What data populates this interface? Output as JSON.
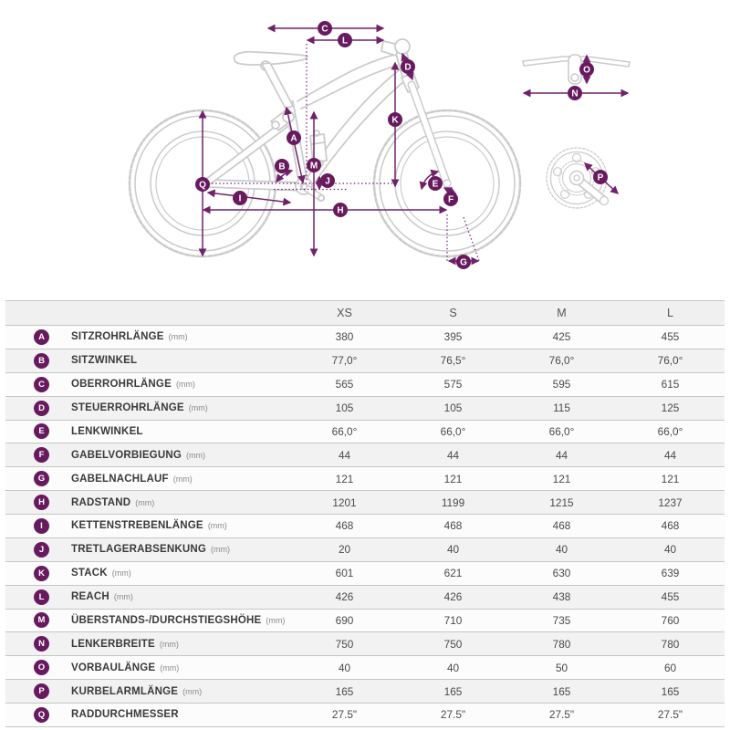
{
  "colors": {
    "accent_purple": "#671a5e",
    "dimension_line": "#71216b",
    "bike_outline": "#cccccc",
    "table_border": "#c6c6c6",
    "header_bg": "#f0f0f0",
    "row_alt_bg": "#f2f2f2"
  },
  "diagram": {
    "description": "bike-geometry-diagram",
    "markers": [
      "A",
      "B",
      "C",
      "D",
      "E",
      "F",
      "G",
      "H",
      "I",
      "J",
      "K",
      "L",
      "M",
      "N",
      "O",
      "P",
      "Q"
    ]
  },
  "table": {
    "header": {
      "sizes": [
        "XS",
        "S",
        "M",
        "L"
      ]
    },
    "rows": [
      {
        "letter": "A",
        "label": "SITZROHRLÄNGE",
        "unit": "(mm)",
        "values": [
          "380",
          "395",
          "425",
          "455"
        ]
      },
      {
        "letter": "B",
        "label": "SITZWINKEL",
        "unit": "",
        "values": [
          "77,0°",
          "76,5°",
          "76,0°",
          "76,0°"
        ]
      },
      {
        "letter": "C",
        "label": "OBERROHRLÄNGE",
        "unit": "(mm)",
        "values": [
          "565",
          "575",
          "595",
          "615"
        ]
      },
      {
        "letter": "D",
        "label": "STEUERROHRLÄNGE",
        "unit": "(mm)",
        "values": [
          "105",
          "105",
          "115",
          "125"
        ]
      },
      {
        "letter": "E",
        "label": "LENKWINKEL",
        "unit": "",
        "values": [
          "66,0°",
          "66,0°",
          "66,0°",
          "66,0°"
        ]
      },
      {
        "letter": "F",
        "label": "GABELVORBIEGUNG",
        "unit": "(mm)",
        "values": [
          "44",
          "44",
          "44",
          "44"
        ]
      },
      {
        "letter": "G",
        "label": "GABELNACHLAUF",
        "unit": "(mm)",
        "values": [
          "121",
          "121",
          "121",
          "121"
        ]
      },
      {
        "letter": "H",
        "label": "RADSTAND",
        "unit": "(mm)",
        "values": [
          "1201",
          "1199",
          "1215",
          "1237"
        ]
      },
      {
        "letter": "I",
        "label": "KETTENSTREBENLÄNGE",
        "unit": "(mm)",
        "values": [
          "468",
          "468",
          "468",
          "468"
        ]
      },
      {
        "letter": "J",
        "label": "TRETLAGERABSENKUNG",
        "unit": "(mm)",
        "values": [
          "20",
          "40",
          "40",
          "40"
        ]
      },
      {
        "letter": "K",
        "label": "STACK",
        "unit": "(mm)",
        "values": [
          "601",
          "621",
          "630",
          "639"
        ]
      },
      {
        "letter": "L",
        "label": "REACH",
        "unit": "(mm)",
        "values": [
          "426",
          "426",
          "438",
          "455"
        ]
      },
      {
        "letter": "M",
        "label": "ÜBERSTANDS-/DURCHSTIEGSHÖHE",
        "unit": "(mm)",
        "values": [
          "690",
          "710",
          "735",
          "760"
        ]
      },
      {
        "letter": "N",
        "label": "LENKERBREITE",
        "unit": "(mm)",
        "values": [
          "750",
          "750",
          "780",
          "780"
        ]
      },
      {
        "letter": "O",
        "label": "VORBAULÄNGE",
        "unit": "(mm)",
        "values": [
          "40",
          "40",
          "50",
          "60"
        ]
      },
      {
        "letter": "P",
        "label": "KURBELARMLÄNGE",
        "unit": "(mm)",
        "values": [
          "165",
          "165",
          "165",
          "165"
        ]
      },
      {
        "letter": "Q",
        "label": "RADDURCHMESSER",
        "unit": "",
        "values": [
          "27.5\"",
          "27.5\"",
          "27.5\"",
          "27.5\""
        ]
      }
    ]
  }
}
